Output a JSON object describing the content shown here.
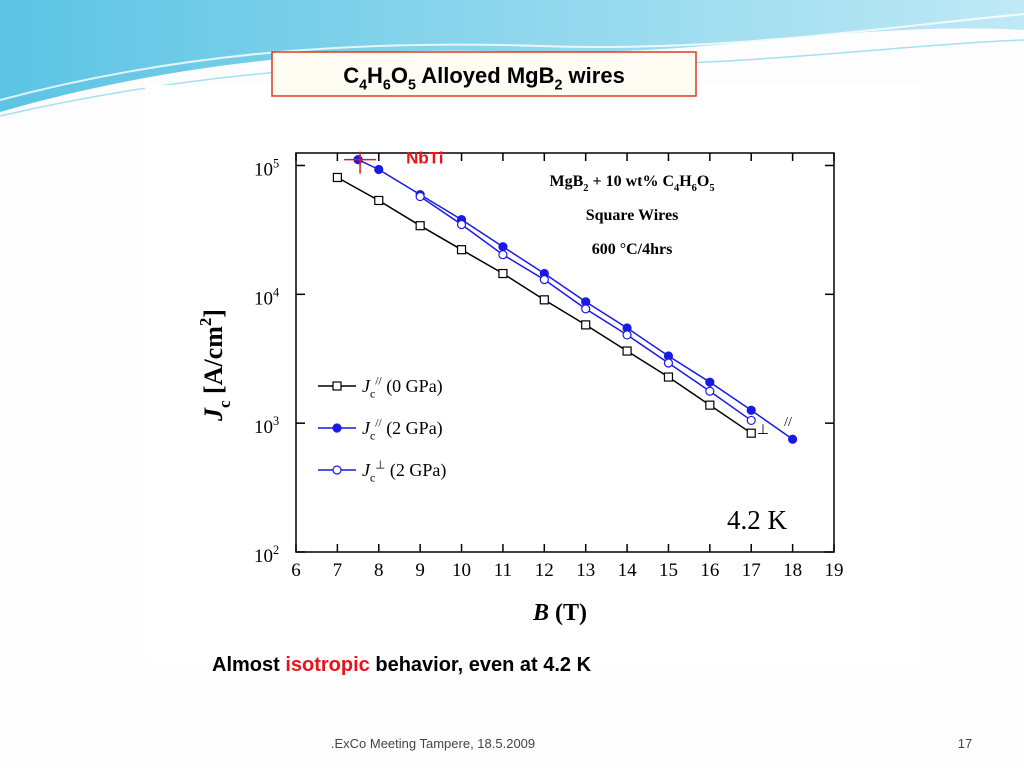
{
  "slide": {
    "title": [
      "C",
      "4",
      "H",
      "6",
      "O",
      "5",
      " Alloyed MgB",
      "2",
      " wires"
    ],
    "caption": [
      "Almost ",
      "isotropic",
      " behavior, even at 4.2 K"
    ],
    "footer": ".ExCo Meeting Tampere, 18.5.2009",
    "page": "17"
  },
  "chart_data": {
    "type": "line",
    "x_label": [
      "B",
      " (T)"
    ],
    "y_label": [
      "J",
      "c",
      " [A/cm",
      "2",
      "]"
    ],
    "xlim": [
      6,
      19
    ],
    "xticks": [
      6,
      7,
      8,
      9,
      10,
      11,
      12,
      13,
      14,
      15,
      16,
      17,
      18,
      19
    ],
    "ylim": [
      100,
      125000
    ],
    "y_log": true,
    "yticks": [
      {
        "value": 100,
        "label": [
          "10",
          "2"
        ]
      },
      {
        "value": 1000,
        "label": [
          "10",
          "3"
        ]
      },
      {
        "value": 10000,
        "label": [
          "10",
          "4"
        ]
      },
      {
        "value": 100000,
        "label": [
          "10",
          "5"
        ]
      }
    ],
    "notes": [
      [
        "MgB",
        "2",
        " + 10 wt% C",
        "4",
        "H",
        "6",
        "O",
        "5"
      ],
      [
        "Square Wires"
      ],
      [
        "600 °C/4hrs"
      ]
    ],
    "temperature": "4.2 K",
    "parallel_mark": "//",
    "perpendicular_mark": "⊥",
    "reference": {
      "label": "NbTi",
      "color": "#e8141c",
      "x": 7.5,
      "value": 111000
    },
    "series": [
      {
        "name": [
          "J",
          "c",
          "//",
          " (0 GPa)"
        ],
        "color": "#000000",
        "marker": "square-open",
        "x": [
          7,
          8,
          9,
          10,
          11,
          12,
          13,
          14,
          15,
          16,
          17
        ],
        "values": [
          80700,
          53500,
          34100,
          22200,
          14500,
          9060,
          5790,
          3630,
          2280,
          1380,
          836
        ]
      },
      {
        "name": [
          "J",
          "c",
          "//",
          " (2 GPa)"
        ],
        "color": "#1a1ae6",
        "marker": "circle-filled",
        "x": [
          7.5,
          8,
          9,
          10,
          11,
          12,
          13,
          14,
          15,
          16,
          17,
          18
        ],
        "values": [
          111000,
          93100,
          59400,
          38000,
          23400,
          14500,
          8750,
          5480,
          3320,
          2080,
          1260,
          750
        ]
      },
      {
        "name": [
          "J",
          "c",
          "⊥",
          " (2 GPa)"
        ],
        "color": "#1a1ae6",
        "marker": "circle-open",
        "x": [
          9,
          10,
          11,
          12,
          13,
          14,
          15,
          16,
          17
        ],
        "values": [
          57400,
          34800,
          20300,
          13000,
          7710,
          4840,
          2930,
          1770,
          1050
        ]
      }
    ]
  }
}
